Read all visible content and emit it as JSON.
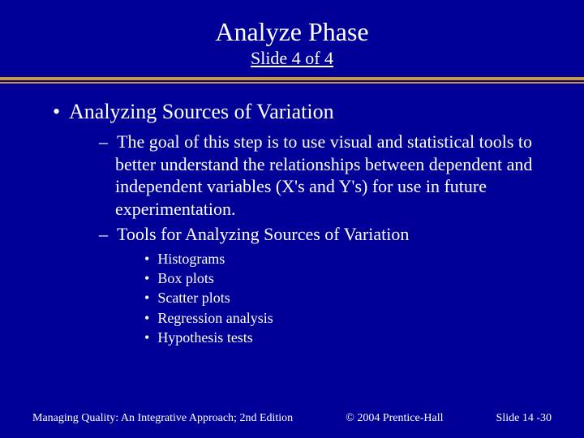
{
  "header": {
    "title": "Analyze Phase",
    "subtitle": "Slide 4 of 4"
  },
  "colors": {
    "background": "#000099",
    "text": "#ffffff",
    "divider": "#cc9933"
  },
  "body": {
    "heading": "Analyzing Sources of Variation",
    "sub1": "The goal of this step is to use visual and statistical tools to better understand the relationships between dependent and independent variables (X's and Y's) for use in future experimentation.",
    "sub2": "Tools for Analyzing Sources of Variation",
    "tools": [
      "Histograms",
      "Box plots",
      "Scatter plots",
      "Regression analysis",
      "Hypothesis tests"
    ]
  },
  "footer": {
    "left": "Managing Quality: An Integrative Approach; 2nd Edition",
    "center": "© 2004 Prentice-Hall",
    "right": "Slide  14 -30"
  }
}
